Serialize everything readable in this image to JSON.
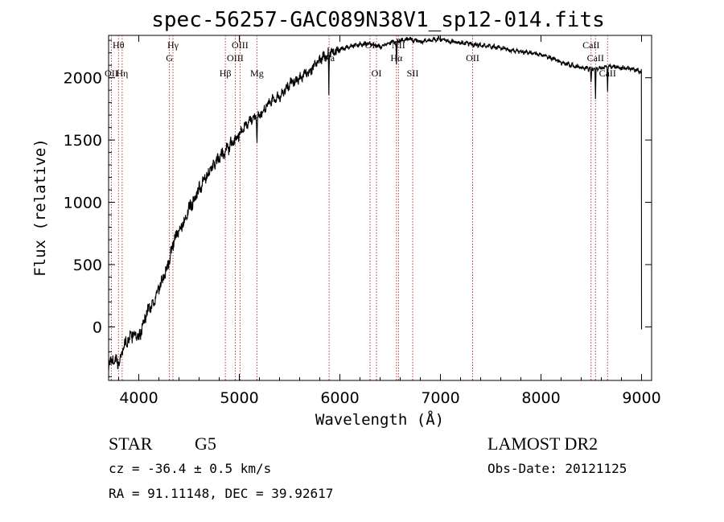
{
  "chart_data": {
    "type": "line",
    "title": "spec-56257-GAC089N38V1_sp12-014.fits",
    "xlabel": "Wavelength (Å)",
    "ylabel": "Flux (relative)",
    "xlim": [
      3700,
      9100
    ],
    "ylim": [
      -430,
      2340
    ],
    "xticks": [
      4000,
      5000,
      6000,
      7000,
      8000,
      9000
    ],
    "yticks": [
      0,
      500,
      1000,
      1500,
      2000
    ],
    "series": [
      {
        "name": "flux",
        "x": [
          3700,
          3750,
          3800,
          3850,
          3900,
          3950,
          4000,
          4050,
          4100,
          4150,
          4200,
          4250,
          4300,
          4350,
          4400,
          4450,
          4500,
          4600,
          4700,
          4800,
          4900,
          5000,
          5100,
          5200,
          5300,
          5400,
          5500,
          5600,
          5700,
          5800,
          5900,
          6000,
          6100,
          6200,
          6300,
          6400,
          6500,
          6600,
          6700,
          6800,
          6900,
          7000,
          7100,
          7200,
          7300,
          7400,
          7500,
          7600,
          7700,
          7800,
          7900,
          8000,
          8100,
          8200,
          8300,
          8400,
          8500,
          8600,
          8700,
          8800,
          8900,
          9000
        ],
        "y": [
          -300,
          -250,
          -300,
          -150,
          -100,
          -50,
          -100,
          50,
          150,
          200,
          300,
          400,
          520,
          700,
          760,
          850,
          950,
          1100,
          1250,
          1350,
          1450,
          1550,
          1650,
          1700,
          1800,
          1850,
          1950,
          2000,
          2050,
          2150,
          2200,
          2230,
          2250,
          2270,
          2270,
          2250,
          2280,
          2300,
          2310,
          2290,
          2300,
          2310,
          2290,
          2280,
          2270,
          2260,
          2250,
          2240,
          2220,
          2210,
          2200,
          2180,
          2160,
          2120,
          2100,
          2080,
          2070,
          2080,
          2090,
          2080,
          2070,
          2050
        ]
      }
    ],
    "absorption_features": [
      {
        "wavelength": 5890,
        "depth": 350
      },
      {
        "wavelength": 6563,
        "depth": 220
      },
      {
        "wavelength": 8498,
        "depth": 150
      },
      {
        "wavelength": 8542,
        "depth": 250
      },
      {
        "wavelength": 8662,
        "depth": 200
      },
      {
        "wavelength": 5175,
        "depth": 200
      }
    ],
    "lines": [
      {
        "label": "Hθ",
        "wavelength": 3798,
        "row": 1
      },
      {
        "label": "OII",
        "wavelength": 3727,
        "row": 2
      },
      {
        "label": "Hη",
        "wavelength": 3835,
        "row": 2
      },
      {
        "label": "Hγ",
        "wavelength": 4340,
        "row": 1
      },
      {
        "label": "G",
        "wavelength": 4305,
        "row": 1.5
      },
      {
        "label": "Hβ",
        "wavelength": 4861,
        "row": 2
      },
      {
        "label": "OIII",
        "wavelength": 5007,
        "row": 1
      },
      {
        "label": "OIII",
        "wavelength": 4959,
        "row": 1.5
      },
      {
        "label": "Mg",
        "wavelength": 5175,
        "row": 2
      },
      {
        "label": "Na",
        "wavelength": 5893,
        "row": 1.5
      },
      {
        "label": "OI",
        "wavelength": 6300,
        "row": 1
      },
      {
        "label": "OI",
        "wavelength": 6364,
        "row": 2
      },
      {
        "label": "NII",
        "wavelength": 6583,
        "row": 1
      },
      {
        "label": "Hα",
        "wavelength": 6563,
        "row": 1.5
      },
      {
        "label": "OII",
        "wavelength": 7320,
        "row": 1.5
      },
      {
        "label": "SII",
        "wavelength": 6724,
        "row": 2
      },
      {
        "label": "CaII",
        "wavelength": 8498,
        "row": 1
      },
      {
        "label": "CaII",
        "wavelength": 8542,
        "row": 1.5
      },
      {
        "label": "CaII",
        "wavelength": 8662,
        "row": 2
      }
    ]
  },
  "info": {
    "class": "STAR",
    "subclass": "G5",
    "survey": "LAMOST DR2",
    "cz": "cz = -36.4 ± 0.5 km/s",
    "obs_date": "Obs-Date: 20121125",
    "coords": "RA =  91.11148, DEC =  39.92617"
  },
  "colors": {
    "line": "#000000",
    "marker": "#b22222",
    "text": "#000000"
  }
}
